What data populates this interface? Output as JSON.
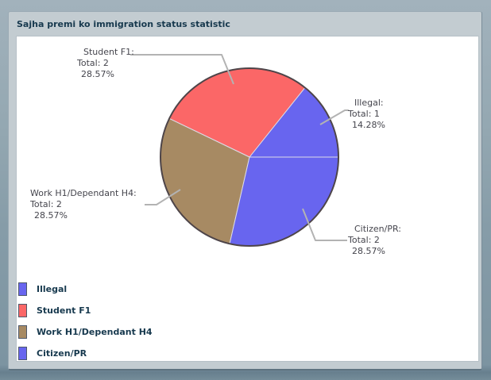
{
  "window": {
    "title": "Sajha premi ko immigration status statistic"
  },
  "chart_data": {
    "type": "pie",
    "title": "Sajha premi ko immigration status statistic",
    "start_angle_deg": 0,
    "direction": "counterclockwise",
    "legend_position": "bottom-left",
    "outline_color": "#4E4549",
    "slice_separator_color": "#DCDCE8",
    "callout_line_color": "#B3B3B3",
    "slices": [
      {
        "label": "Illegal",
        "total": 1,
        "percent": 14.28,
        "color": "#6865EF",
        "callout": {
          "line1": "Illegal:",
          "line2": "Total: 1",
          "line3": "14.28%"
        }
      },
      {
        "label": "Student F1",
        "total": 2,
        "percent": 28.57,
        "color": "#FB6767",
        "callout": {
          "line1": "Student F1:",
          "line2": "Total: 2",
          "line3": "28.57%"
        }
      },
      {
        "label": "Work H1/Dependant H4",
        "total": 2,
        "percent": 28.57,
        "color": "#A78A63",
        "callout": {
          "line1": "Work H1/Dependant H4:",
          "line2": "Total: 2",
          "line3": "28.57%"
        }
      },
      {
        "label": "Citizen/PR",
        "total": 2,
        "percent": 28.57,
        "color": "#6865EF",
        "callout": {
          "line1": "Citizen/PR:",
          "line2": "Total: 2",
          "line3": "28.57%"
        }
      }
    ]
  }
}
